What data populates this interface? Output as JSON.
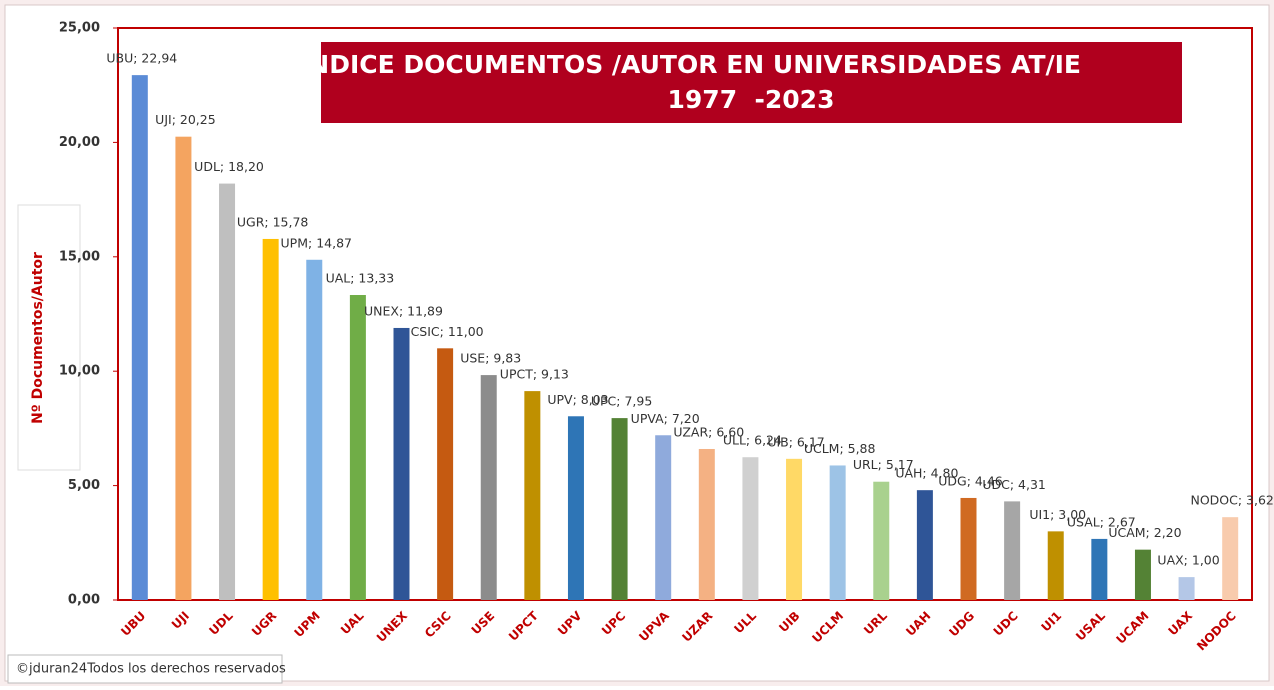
{
  "chart_data": {
    "type": "bar",
    "title": "ÍNDICE DOCUMENTOS /AUTOR EN UNIVERSIDADES AT/IE",
    "subtitle": "1977  -2023",
    "y_label": "Nº Documentos/Autor",
    "annotation": "©jduran24Todos los derechos reservados",
    "categories": [
      "UBU",
      "UJI",
      "UDL",
      "UGR",
      "UPM",
      "UAL",
      "UNEX",
      "CSIC",
      "USE",
      "UPCT",
      "UPV",
      "UPC",
      "UPVA",
      "UZAR",
      "ULL",
      "UIB",
      "UCLM",
      "URL",
      "UAH",
      "UDG",
      "UDC",
      "UI1",
      "USAL",
      "UCAM",
      "UAX",
      "NODOC"
    ],
    "values": [
      22.94,
      20.25,
      18.2,
      15.78,
      14.87,
      13.33,
      11.89,
      11.0,
      9.83,
      9.13,
      8.03,
      7.95,
      7.2,
      6.6,
      6.24,
      6.17,
      5.88,
      5.17,
      4.8,
      4.46,
      4.31,
      3.0,
      2.67,
      2.2,
      1.0,
      3.62
    ],
    "value_labels": [
      "UBU; 22,94",
      "UJI; 20,25",
      "UDL; 18,20",
      "UGR; 15,78",
      "UPM; 14,87",
      "UAL; 13,33",
      "UNEX; 11,89",
      "CSIC; 11,00",
      "USE; 9,83",
      "UPCT; 9,13",
      "UPV; 8,03",
      "UPC; 7,95",
      "UPVA; 7,20",
      "UZAR; 6,60",
      "ULL; 6,24",
      "UIB; 6,17",
      "UCLM; 5,88",
      "URL; 5,17",
      "UAH; 4,80",
      "UDG; 4,46",
      "UDC; 4,31",
      "UI1; 3,00",
      "USAL; 2,67",
      "UCAM; 2,20",
      "UAX; 1,00",
      "NODOC; 3,62"
    ],
    "colors": [
      "#5b8bd6",
      "#f4a460",
      "#bfbfbf",
      "#ffc000",
      "#7fb2e5",
      "#70ad47",
      "#2f5597",
      "#c55a11",
      "#8c8c8c",
      "#bf9000",
      "#2e75b6",
      "#548235",
      "#8faadc",
      "#f4b183",
      "#d0d0d0",
      "#ffd966",
      "#9dc3e6",
      "#a9d18e",
      "#2f5597",
      "#d06a22",
      "#a6a6a6",
      "#bf9000",
      "#2e75b6",
      "#548235",
      "#b4c7e7",
      "#f8cbad"
    ],
    "ylim": [
      0,
      25
    ],
    "yticks": [
      {
        "value": 0,
        "label": "0,00"
      },
      {
        "value": 5,
        "label": "5,00"
      },
      {
        "value": 10,
        "label": "10,00"
      },
      {
        "value": 15,
        "label": "15,00"
      },
      {
        "value": 20,
        "label": "20,00"
      },
      {
        "value": 25,
        "label": "25,00"
      }
    ],
    "grid": false
  }
}
